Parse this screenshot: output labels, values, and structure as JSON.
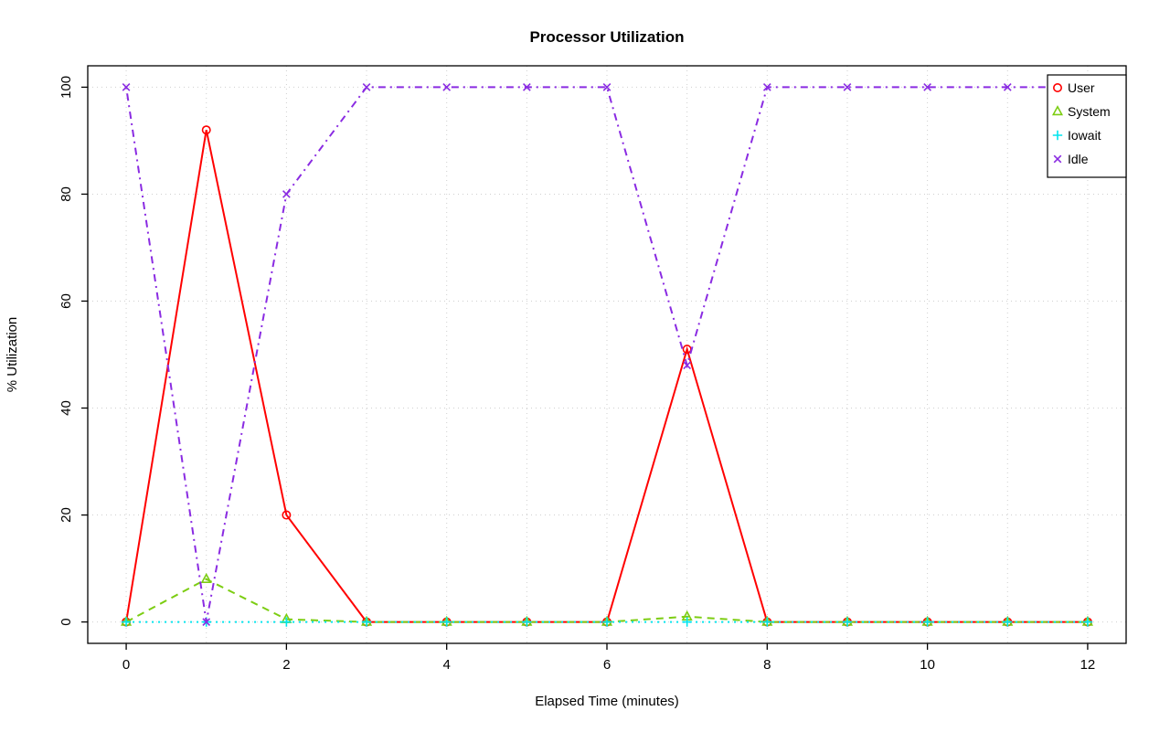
{
  "chart_data": {
    "type": "line",
    "title": "Processor Utilization",
    "xlabel": "Elapsed Time (minutes)",
    "ylabel": "% Utilization",
    "x": [
      0,
      1,
      2,
      3,
      4,
      5,
      6,
      7,
      8,
      9,
      10,
      11,
      12
    ],
    "xticks": [
      0,
      2,
      4,
      6,
      8,
      10,
      12
    ],
    "yticks": [
      0,
      20,
      40,
      60,
      80,
      100
    ],
    "xlim": [
      0,
      12
    ],
    "ylim": [
      0,
      100
    ],
    "grid": true,
    "grid_x_step": 1,
    "legend_position": "top-right",
    "series": [
      {
        "name": "User",
        "color": "#ff0000",
        "marker": "circle",
        "linestyle": "solid",
        "values": [
          0,
          92,
          20,
          0,
          0,
          0,
          0,
          51,
          0,
          0,
          0,
          0,
          0
        ]
      },
      {
        "name": "System",
        "color": "#7ccd12",
        "marker": "triangle",
        "linestyle": "dashed",
        "values": [
          0,
          8,
          0.5,
          0,
          0,
          0,
          0,
          1,
          0,
          0,
          0,
          0,
          0
        ]
      },
      {
        "name": "Iowait",
        "color": "#00e5ee",
        "marker": "plus",
        "linestyle": "dotted",
        "values": [
          0,
          0,
          0,
          0,
          0,
          0,
          0,
          0,
          0,
          0,
          0,
          0,
          0
        ]
      },
      {
        "name": "Idle",
        "color": "#8a2be2",
        "marker": "x",
        "linestyle": "dotdash",
        "values": [
          100,
          0,
          80,
          100,
          100,
          100,
          100,
          48,
          100,
          100,
          100,
          100,
          100
        ]
      }
    ]
  }
}
